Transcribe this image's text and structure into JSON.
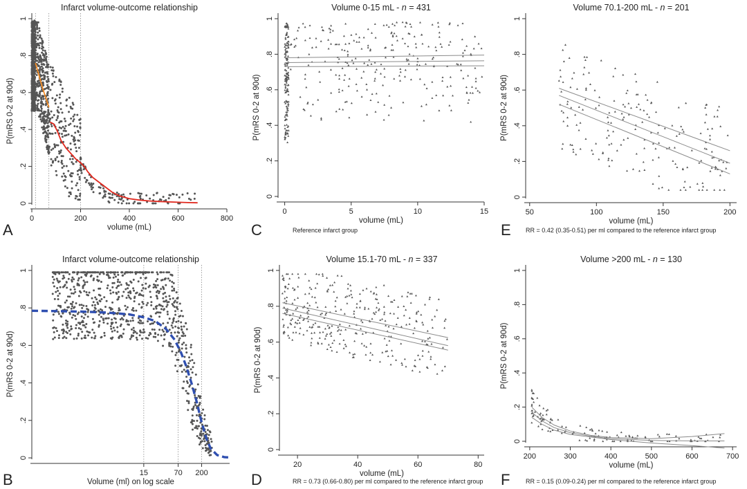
{
  "chart_data": [
    {
      "panel": "A",
      "type": "scatter",
      "title": "Infarct volume-outcome relationship",
      "xlabel": "volume (mL)",
      "ylabel": "P(mRS 0-2 at 90d)",
      "note": "",
      "xlim": [
        0,
        800
      ],
      "ylim": [
        0,
        1
      ],
      "xticks": [
        0,
        200,
        400,
        600,
        800
      ],
      "xtick_labels": [
        "0",
        "200",
        "400",
        "600",
        "800"
      ],
      "yticks": [
        0,
        0.2,
        0.4,
        0.6,
        0.8,
        1
      ],
      "ytick_labels": [
        "0",
        ".2",
        ".4",
        ".6",
        ".8",
        "1"
      ],
      "vlines": [
        15,
        70,
        200
      ],
      "lines": [
        {
          "color": "#f08a24",
          "x": [
            15,
            30,
            45,
            60,
            70
          ],
          "y": [
            0.76,
            0.69,
            0.62,
            0.56,
            0.52
          ]
        },
        {
          "color": "#e0281e",
          "x": [
            75,
            90,
            105,
            120,
            140,
            160,
            180,
            200,
            215,
            230,
            250,
            270,
            300,
            330,
            360,
            400,
            440,
            480,
            520,
            560,
            600,
            640,
            680
          ],
          "y": [
            0.44,
            0.43,
            0.39,
            0.34,
            0.3,
            0.27,
            0.24,
            0.22,
            0.2,
            0.17,
            0.14,
            0.12,
            0.09,
            0.06,
            0.04,
            0.025,
            0.018,
            0.013,
            0.01,
            0.008,
            0.006,
            0.004,
            0.003
          ]
        }
      ]
    },
    {
      "panel": "B",
      "type": "scatter",
      "title": "Infarct volume-outcome relationship",
      "xlabel": "Volume (ml) on log scale",
      "ylabel": "P(mRS 0-2 at 90d)",
      "note": "",
      "xscale": "log",
      "xlim": [
        0.1,
        700
      ],
      "ylim": [
        0,
        1
      ],
      "xticks": [
        15,
        70,
        200
      ],
      "xtick_labels": [
        "15",
        "70",
        "200"
      ],
      "yticks": [
        0,
        0.2,
        0.4,
        0.6,
        0.8,
        1
      ],
      "ytick_labels": [
        "0",
        ".2",
        ".4",
        ".6",
        ".8",
        "1"
      ],
      "vlines": [
        15,
        70,
        200
      ],
      "lines": [
        {
          "color": "#2f4fb0",
          "dashed": true,
          "x": [
            0.1,
            0.3,
            1,
            3,
            8,
            15,
            25,
            40,
            60,
            80,
            100,
            130,
            160,
            200,
            250,
            300,
            400,
            550,
            700
          ],
          "y": [
            0.785,
            0.783,
            0.78,
            0.775,
            0.765,
            0.75,
            0.73,
            0.69,
            0.63,
            0.56,
            0.49,
            0.39,
            0.3,
            0.19,
            0.1,
            0.05,
            0.015,
            0.004,
            0.002
          ]
        }
      ]
    },
    {
      "panel": "C",
      "type": "scatter",
      "title": "Volume 0-15 mL - ",
      "n_label": "n",
      "n_value": " = 431",
      "xlabel": "volume (mL)",
      "ylabel": "P(mRS 0-2 at 90d)",
      "note": "Reference infarct group",
      "xlim": [
        -0.5,
        15
      ],
      "ylim": [
        0,
        1
      ],
      "xticks": [
        0,
        5,
        10,
        15
      ],
      "xtick_labels": [
        "0",
        "5",
        "10",
        "15"
      ],
      "yticks": [
        0,
        0.2,
        0.4,
        0.6,
        0.8,
        1
      ],
      "ytick_labels": [
        "0",
        ".2",
        ".4",
        ".6",
        ".8",
        "1"
      ],
      "fit": {
        "x": [
          0,
          15
        ],
        "y": [
          0.753,
          0.763
        ],
        "ci_upper": [
          0.78,
          0.795
        ],
        "ci_lower": [
          0.73,
          0.735
        ]
      }
    },
    {
      "panel": "D",
      "type": "scatter",
      "title": "Volume 15.1-70 mL - ",
      "n_label": "n",
      "n_value": " = 337",
      "xlabel": "volume (mL)",
      "ylabel": "P(mRS 0-2 at 90d)",
      "note": "RR = 0.73 (0.66-0.80) per ml compared to the reference infarct group",
      "xlim": [
        14,
        82
      ],
      "ylim": [
        0,
        1
      ],
      "xticks": [
        20,
        40,
        60,
        80
      ],
      "xtick_labels": [
        "20",
        "40",
        "60",
        "80"
      ],
      "yticks": [
        0,
        0.2,
        0.4,
        0.6,
        0.8,
        1
      ],
      "ytick_labels": [
        "0",
        ".2",
        ".4",
        ".6",
        ".8",
        "1"
      ],
      "fit": {
        "x": [
          15,
          70
        ],
        "y": [
          0.79,
          0.58
        ],
        "ci_upper": [
          0.82,
          0.625
        ],
        "ci_lower": [
          0.76,
          0.555
        ]
      }
    },
    {
      "panel": "E",
      "type": "scatter",
      "title": "Volume 70.1-200 mL - ",
      "n_label": "n",
      "n_value": " = 201",
      "xlabel": "volume (mL)",
      "ylabel": "P(mRS 0-2 at 90d)",
      "note": "RR = 0.42 (0.35-0.51) per ml compared to the reference infarct group",
      "xlim": [
        47,
        205
      ],
      "ylim": [
        0,
        1
      ],
      "xticks": [
        50,
        100,
        150,
        200
      ],
      "xtick_labels": [
        "50",
        "100",
        "150",
        "200"
      ],
      "yticks": [
        0,
        0.2,
        0.4,
        0.6,
        0.8,
        1
      ],
      "ytick_labels": [
        "0",
        ".2",
        ".4",
        ".6",
        ".8",
        "1"
      ],
      "fit": {
        "x": [
          72,
          200
        ],
        "y": [
          0.57,
          0.19
        ],
        "ci_upper": [
          0.61,
          0.26
        ],
        "ci_lower": [
          0.52,
          0.13
        ]
      }
    },
    {
      "panel": "F",
      "type": "scatter",
      "title": "Volume >200 mL - ",
      "n_label": "n",
      "n_value": " = 130",
      "xlabel": "volume (mL)",
      "ylabel": "P(mRS 0-2 at 90d)",
      "note": "RR = 0.15 (0.09-0.24) per ml compared to the reference infarct group",
      "xlim": [
        190,
        710
      ],
      "ylim": [
        0,
        1
      ],
      "xticks": [
        200,
        300,
        400,
        500,
        600,
        700
      ],
      "xtick_labels": [
        "200",
        "300",
        "400",
        "500",
        "600",
        "700"
      ],
      "yticks": [
        0,
        0.2,
        0.4,
        0.6,
        0.8,
        1
      ],
      "ytick_labels": [
        "0",
        ".2",
        ".4",
        ".6",
        ".8",
        "1"
      ],
      "fit_curve": {
        "x": [
          205,
          230,
          260,
          300,
          350,
          400,
          500,
          600,
          680
        ],
        "y": [
          0.17,
          0.12,
          0.08,
          0.05,
          0.03,
          0.015,
          0.005,
          0.002,
          0.002
        ],
        "ci_upper": [
          0.2,
          0.14,
          0.095,
          0.06,
          0.035,
          0.022,
          0.015,
          0.028,
          0.045
        ],
        "ci_lower": [
          0.14,
          0.1,
          0.065,
          0.04,
          0.025,
          0.01,
          -0.01,
          -0.025,
          -0.04
        ]
      }
    }
  ]
}
